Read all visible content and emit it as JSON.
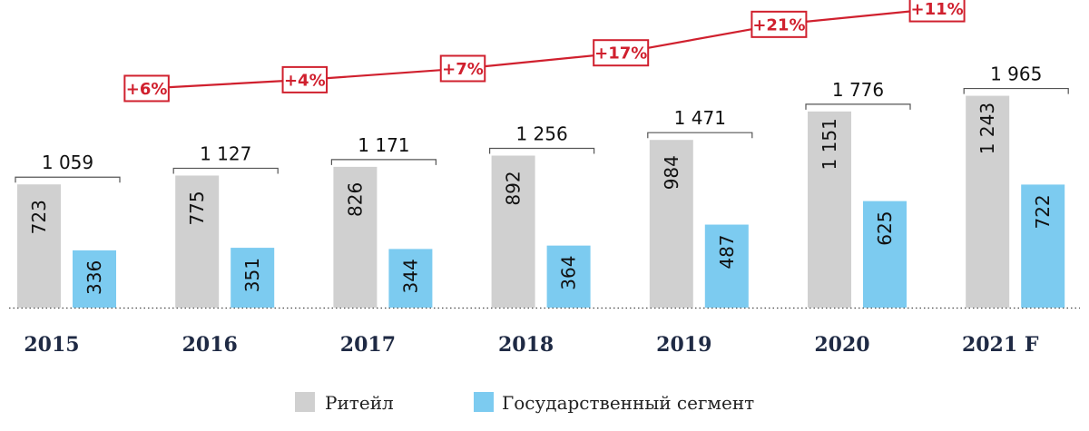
{
  "chart_data": {
    "type": "bar",
    "categories": [
      "2015",
      "2016",
      "2017",
      "2018",
      "2019",
      "2020",
      "2021 F"
    ],
    "series": [
      {
        "name": "Ритейл",
        "values": [
          723,
          775,
          826,
          892,
          984,
          1151,
          1243
        ],
        "labels": [
          "723",
          "775",
          "826",
          "892",
          "984",
          "1 151",
          "1 243"
        ],
        "color": "#d0d0d0"
      },
      {
        "name": "Государственный сегмент",
        "values": [
          336,
          351,
          344,
          364,
          487,
          625,
          722
        ],
        "labels": [
          "336",
          "351",
          "344",
          "364",
          "487",
          "625",
          "722"
        ],
        "color": "#7ccbf0"
      }
    ],
    "totals": {
      "values": [
        1059,
        1127,
        1171,
        1256,
        1471,
        1776,
        1965
      ],
      "labels": [
        "1 059",
        "1 127",
        "1 171",
        "1 256",
        "1 471",
        "1 776",
        "1 965"
      ]
    },
    "growth": {
      "values": [
        6,
        4,
        7,
        17,
        21,
        11
      ],
      "labels": [
        "+6%",
        "+4%",
        "+7%",
        "+17%",
        "+21%",
        "+11%"
      ],
      "color": "#d0202e"
    },
    "title": "",
    "xlabel": "",
    "ylabel": "",
    "ylim": [
      0,
      1965
    ],
    "grid": false,
    "legend": "bottom"
  }
}
